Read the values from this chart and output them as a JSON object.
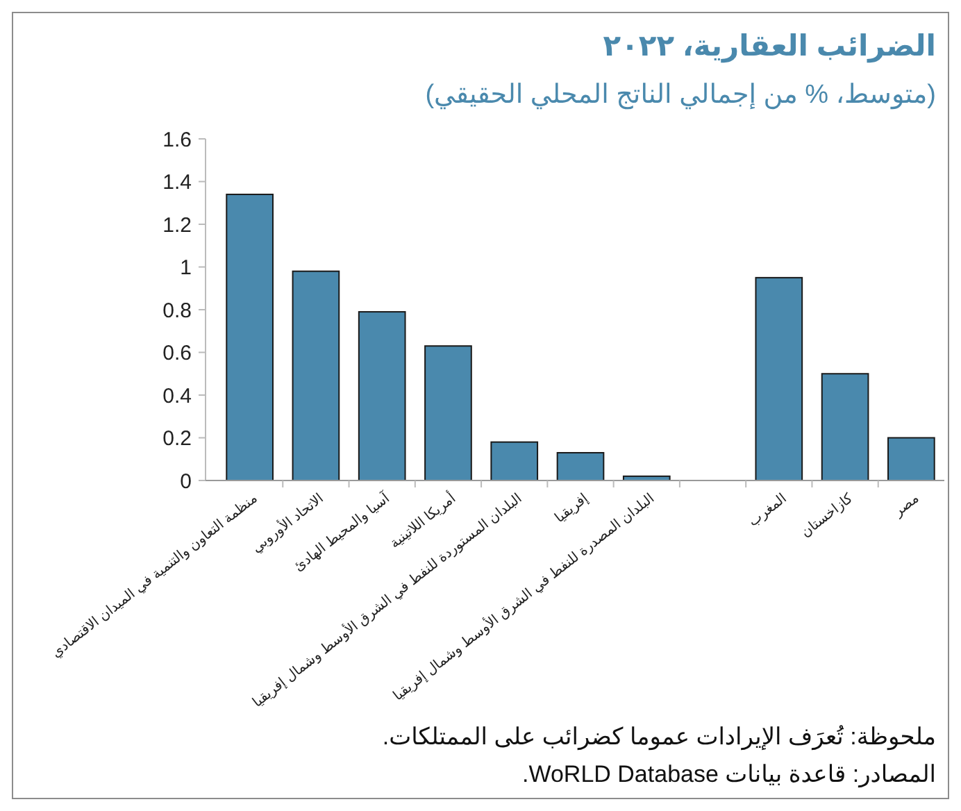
{
  "chart_data": {
    "type": "bar",
    "title": "الضرائب العقارية، ٢٠٢٢",
    "subtitle": "(متوسط، % من إجمالي الناتج المحلي الحقيقي)",
    "categories": [
      "منظمة التعاون والتنمية في الميدان الاقتصادي",
      "الاتحاد الأوروبي",
      "آسيا والمحيط الهادئ",
      "أمريكا اللاتينية",
      "البلدان المستوردة للنفط في الشرق الأوسط وشمال إفريقيا",
      "إفريقيا",
      "البلدان المصدرة للنفط في الشرق الأوسط  وشمال إفريقيا",
      null,
      "المغرب",
      "كازاخستان",
      "مصر"
    ],
    "values": [
      1.34,
      0.98,
      0.79,
      0.63,
      0.18,
      0.13,
      0.02,
      null,
      0.95,
      0.5,
      0.2
    ],
    "color": "#4a89ad",
    "ylim": [
      0,
      1.6
    ],
    "yticks": [
      0,
      0.2,
      0.4,
      0.6,
      0.8,
      1,
      1.2,
      1.4,
      1.6
    ],
    "annotations": [
      "ملحوظة: تُعرَف الإيرادات عموما كضرائب على الممتلكات.",
      "المصادر: قاعدة بيانات WoRLD Database."
    ]
  }
}
